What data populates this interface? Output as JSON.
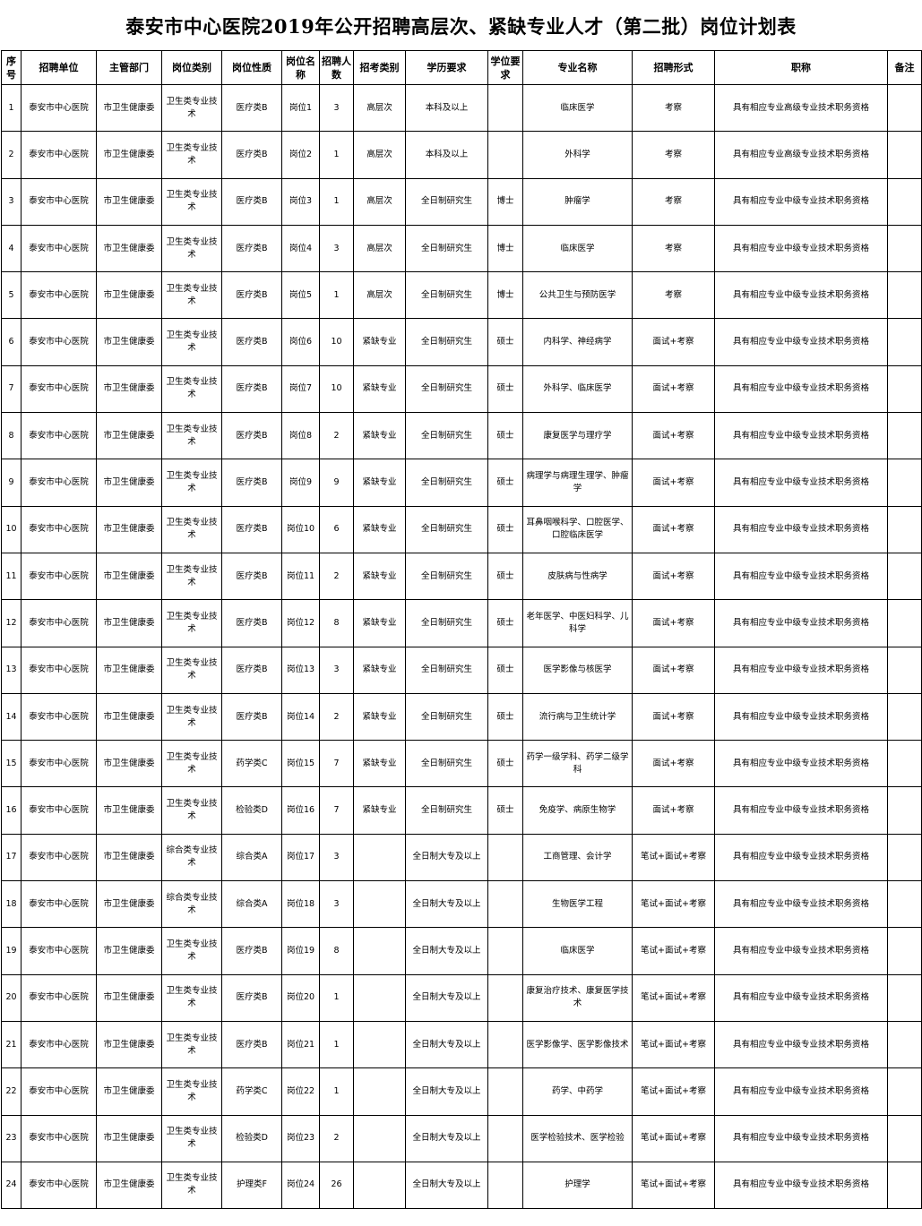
{
  "title": "泰安市中心医院2019年公开招聘高层次、紧缺专业人才（第二批）岗位计划表",
  "table": {
    "headers": [
      "序号",
      "招聘单位",
      "主管部门",
      "岗位类别",
      "岗位性质",
      "岗位名称",
      "招聘人数",
      "招考类别",
      "学历要求",
      "学位要求",
      "专业名称",
      "招聘形式",
      "职称",
      "备注"
    ],
    "rows": [
      [
        "1",
        "泰安市中心医院",
        "市卫生健康委",
        "卫生类专业技术",
        "医疗类B",
        "岗位1",
        "3",
        "高层次",
        "本科及以上",
        "",
        "临床医学",
        "考察",
        "具有相应专业高级专业技术职务资格",
        ""
      ],
      [
        "2",
        "泰安市中心医院",
        "市卫生健康委",
        "卫生类专业技术",
        "医疗类B",
        "岗位2",
        "1",
        "高层次",
        "本科及以上",
        "",
        "外科学",
        "考察",
        "具有相应专业高级专业技术职务资格",
        ""
      ],
      [
        "3",
        "泰安市中心医院",
        "市卫生健康委",
        "卫生类专业技术",
        "医疗类B",
        "岗位3",
        "1",
        "高层次",
        "全日制研究生",
        "博士",
        "肿瘤学",
        "考察",
        "具有相应专业中级专业技术职务资格",
        ""
      ],
      [
        "4",
        "泰安市中心医院",
        "市卫生健康委",
        "卫生类专业技术",
        "医疗类B",
        "岗位4",
        "3",
        "高层次",
        "全日制研究生",
        "博士",
        "临床医学",
        "考察",
        "具有相应专业中级专业技术职务资格",
        ""
      ],
      [
        "5",
        "泰安市中心医院",
        "市卫生健康委",
        "卫生类专业技术",
        "医疗类B",
        "岗位5",
        "1",
        "高层次",
        "全日制研究生",
        "博士",
        "公共卫生与预防医学",
        "考察",
        "具有相应专业中级专业技术职务资格",
        ""
      ],
      [
        "6",
        "泰安市中心医院",
        "市卫生健康委",
        "卫生类专业技术",
        "医疗类B",
        "岗位6",
        "10",
        "紧缺专业",
        "全日制研究生",
        "硕士",
        "内科学、神经病学",
        "面试+考察",
        "具有相应专业中级专业技术职务资格",
        ""
      ],
      [
        "7",
        "泰安市中心医院",
        "市卫生健康委",
        "卫生类专业技术",
        "医疗类B",
        "岗位7",
        "10",
        "紧缺专业",
        "全日制研究生",
        "硕士",
        "外科学、临床医学",
        "面试+考察",
        "具有相应专业中级专业技术职务资格",
        ""
      ],
      [
        "8",
        "泰安市中心医院",
        "市卫生健康委",
        "卫生类专业技术",
        "医疗类B",
        "岗位8",
        "2",
        "紧缺专业",
        "全日制研究生",
        "硕士",
        "康复医学与理疗学",
        "面试+考察",
        "具有相应专业中级专业技术职务资格",
        ""
      ],
      [
        "9",
        "泰安市中心医院",
        "市卫生健康委",
        "卫生类专业技术",
        "医疗类B",
        "岗位9",
        "9",
        "紧缺专业",
        "全日制研究生",
        "硕士",
        "病理学与病理生理学、肿瘤学",
        "面试+考察",
        "具有相应专业中级专业技术职务资格",
        ""
      ],
      [
        "10",
        "泰安市中心医院",
        "市卫生健康委",
        "卫生类专业技术",
        "医疗类B",
        "岗位10",
        "6",
        "紧缺专业",
        "全日制研究生",
        "硕士",
        "耳鼻咽喉科学、口腔医学、口腔临床医学",
        "面试+考察",
        "具有相应专业中级专业技术职务资格",
        ""
      ],
      [
        "11",
        "泰安市中心医院",
        "市卫生健康委",
        "卫生类专业技术",
        "医疗类B",
        "岗位11",
        "2",
        "紧缺专业",
        "全日制研究生",
        "硕士",
        "皮肤病与性病学",
        "面试+考察",
        "具有相应专业中级专业技术职务资格",
        ""
      ],
      [
        "12",
        "泰安市中心医院",
        "市卫生健康委",
        "卫生类专业技术",
        "医疗类B",
        "岗位12",
        "8",
        "紧缺专业",
        "全日制研究生",
        "硕士",
        "老年医学、中医妇科学、儿科学",
        "面试+考察",
        "具有相应专业中级专业技术职务资格",
        ""
      ],
      [
        "13",
        "泰安市中心医院",
        "市卫生健康委",
        "卫生类专业技术",
        "医疗类B",
        "岗位13",
        "3",
        "紧缺专业",
        "全日制研究生",
        "硕士",
        "医学影像与核医学",
        "面试+考察",
        "具有相应专业中级专业技术职务资格",
        ""
      ],
      [
        "14",
        "泰安市中心医院",
        "市卫生健康委",
        "卫生类专业技术",
        "医疗类B",
        "岗位14",
        "2",
        "紧缺专业",
        "全日制研究生",
        "硕士",
        "流行病与卫生统计学",
        "面试+考察",
        "具有相应专业中级专业技术职务资格",
        ""
      ],
      [
        "15",
        "泰安市中心医院",
        "市卫生健康委",
        "卫生类专业技术",
        "药学类C",
        "岗位15",
        "7",
        "紧缺专业",
        "全日制研究生",
        "硕士",
        "药学一级学科、药学二级学科",
        "面试+考察",
        "具有相应专业中级专业技术职务资格",
        ""
      ],
      [
        "16",
        "泰安市中心医院",
        "市卫生健康委",
        "卫生类专业技术",
        "检验类D",
        "岗位16",
        "7",
        "紧缺专业",
        "全日制研究生",
        "硕士",
        "免疫学、病原生物学",
        "面试+考察",
        "具有相应专业中级专业技术职务资格",
        ""
      ],
      [
        "17",
        "泰安市中心医院",
        "市卫生健康委",
        "综合类专业技术",
        "综合类A",
        "岗位17",
        "3",
        "",
        "全日制大专及以上",
        "",
        "工商管理、会计学",
        "笔试+面试+考察",
        "具有相应专业中级专业技术职务资格",
        ""
      ],
      [
        "18",
        "泰安市中心医院",
        "市卫生健康委",
        "综合类专业技术",
        "综合类A",
        "岗位18",
        "3",
        "",
        "全日制大专及以上",
        "",
        "生物医学工程",
        "笔试+面试+考察",
        "具有相应专业中级专业技术职务资格",
        ""
      ],
      [
        "19",
        "泰安市中心医院",
        "市卫生健康委",
        "卫生类专业技术",
        "医疗类B",
        "岗位19",
        "8",
        "",
        "全日制大专及以上",
        "",
        "临床医学",
        "笔试+面试+考察",
        "具有相应专业中级专业技术职务资格",
        ""
      ],
      [
        "20",
        "泰安市中心医院",
        "市卫生健康委",
        "卫生类专业技术",
        "医疗类B",
        "岗位20",
        "1",
        "",
        "全日制大专及以上",
        "",
        "康复治疗技术、康复医学技术",
        "笔试+面试+考察",
        "具有相应专业中级专业技术职务资格",
        ""
      ],
      [
        "21",
        "泰安市中心医院",
        "市卫生健康委",
        "卫生类专业技术",
        "医疗类B",
        "岗位21",
        "1",
        "",
        "全日制大专及以上",
        "",
        "医学影像学、医学影像技术",
        "笔试+面试+考察",
        "具有相应专业中级专业技术职务资格",
        ""
      ],
      [
        "22",
        "泰安市中心医院",
        "市卫生健康委",
        "卫生类专业技术",
        "药学类C",
        "岗位22",
        "1",
        "",
        "全日制大专及以上",
        "",
        "药学、中药学",
        "笔试+面试+考察",
        "具有相应专业中级专业技术职务资格",
        ""
      ],
      [
        "23",
        "泰安市中心医院",
        "市卫生健康委",
        "卫生类专业技术",
        "检验类D",
        "岗位23",
        "2",
        "",
        "全日制大专及以上",
        "",
        "医学检验技术、医学检验",
        "笔试+面试+考察",
        "具有相应专业中级专业技术职务资格",
        ""
      ],
      [
        "24",
        "泰安市中心医院",
        "市卫生健康委",
        "卫生类专业技术",
        "护理类F",
        "岗位24",
        "26",
        "",
        "全日制大专及以上",
        "",
        "护理学",
        "笔试+面试+考察",
        "具有相应专业中级专业技术职务资格",
        ""
      ]
    ]
  }
}
